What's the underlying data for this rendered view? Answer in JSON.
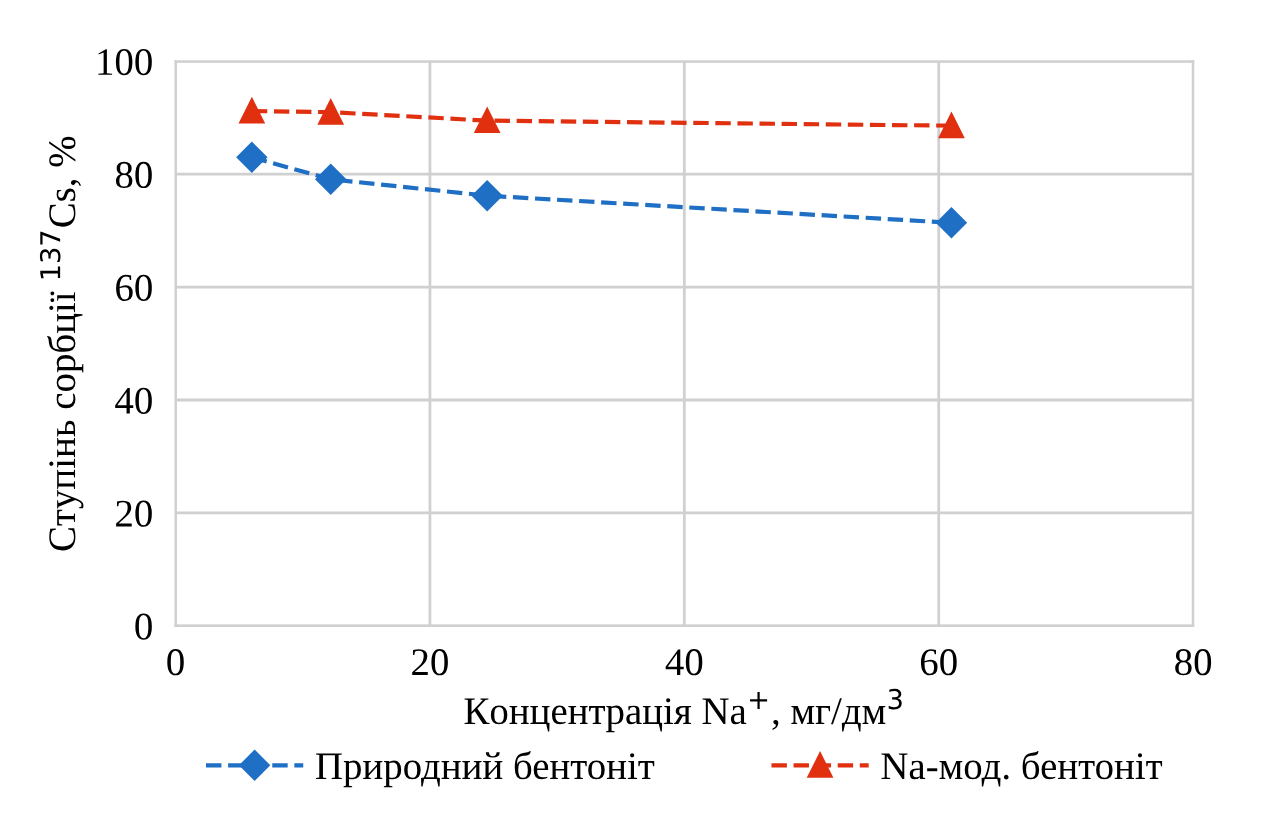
{
  "chart_data": {
    "type": "line",
    "xlabel": "Концентрація Na$^{+}$, мг/дм$^{3}$",
    "ylabel": "Ступінь сорбції $^{137}$Cs, %",
    "xlim": [
      0,
      80
    ],
    "xticks": [
      0,
      20,
      40,
      60,
      80
    ],
    "ylim": [
      0,
      100
    ],
    "yticks": [
      0,
      20,
      40,
      60,
      80,
      100
    ],
    "grid": true,
    "legend": "bottom",
    "line_style": "dashed",
    "series": [
      {
        "name": "Природний бентоніт",
        "color": "#1f6fc5",
        "marker": "diamond",
        "x": [
          6,
          12.2,
          24.5,
          61
        ],
        "values": [
          83,
          79.1,
          76.2,
          71.4
        ]
      },
      {
        "name": "Na-мод. бентоніт",
        "color": "#e03010",
        "marker": "triangle",
        "x": [
          6,
          12.2,
          24.5,
          61
        ],
        "values": [
          91.2,
          91,
          89.5,
          88.6
        ]
      }
    ]
  }
}
